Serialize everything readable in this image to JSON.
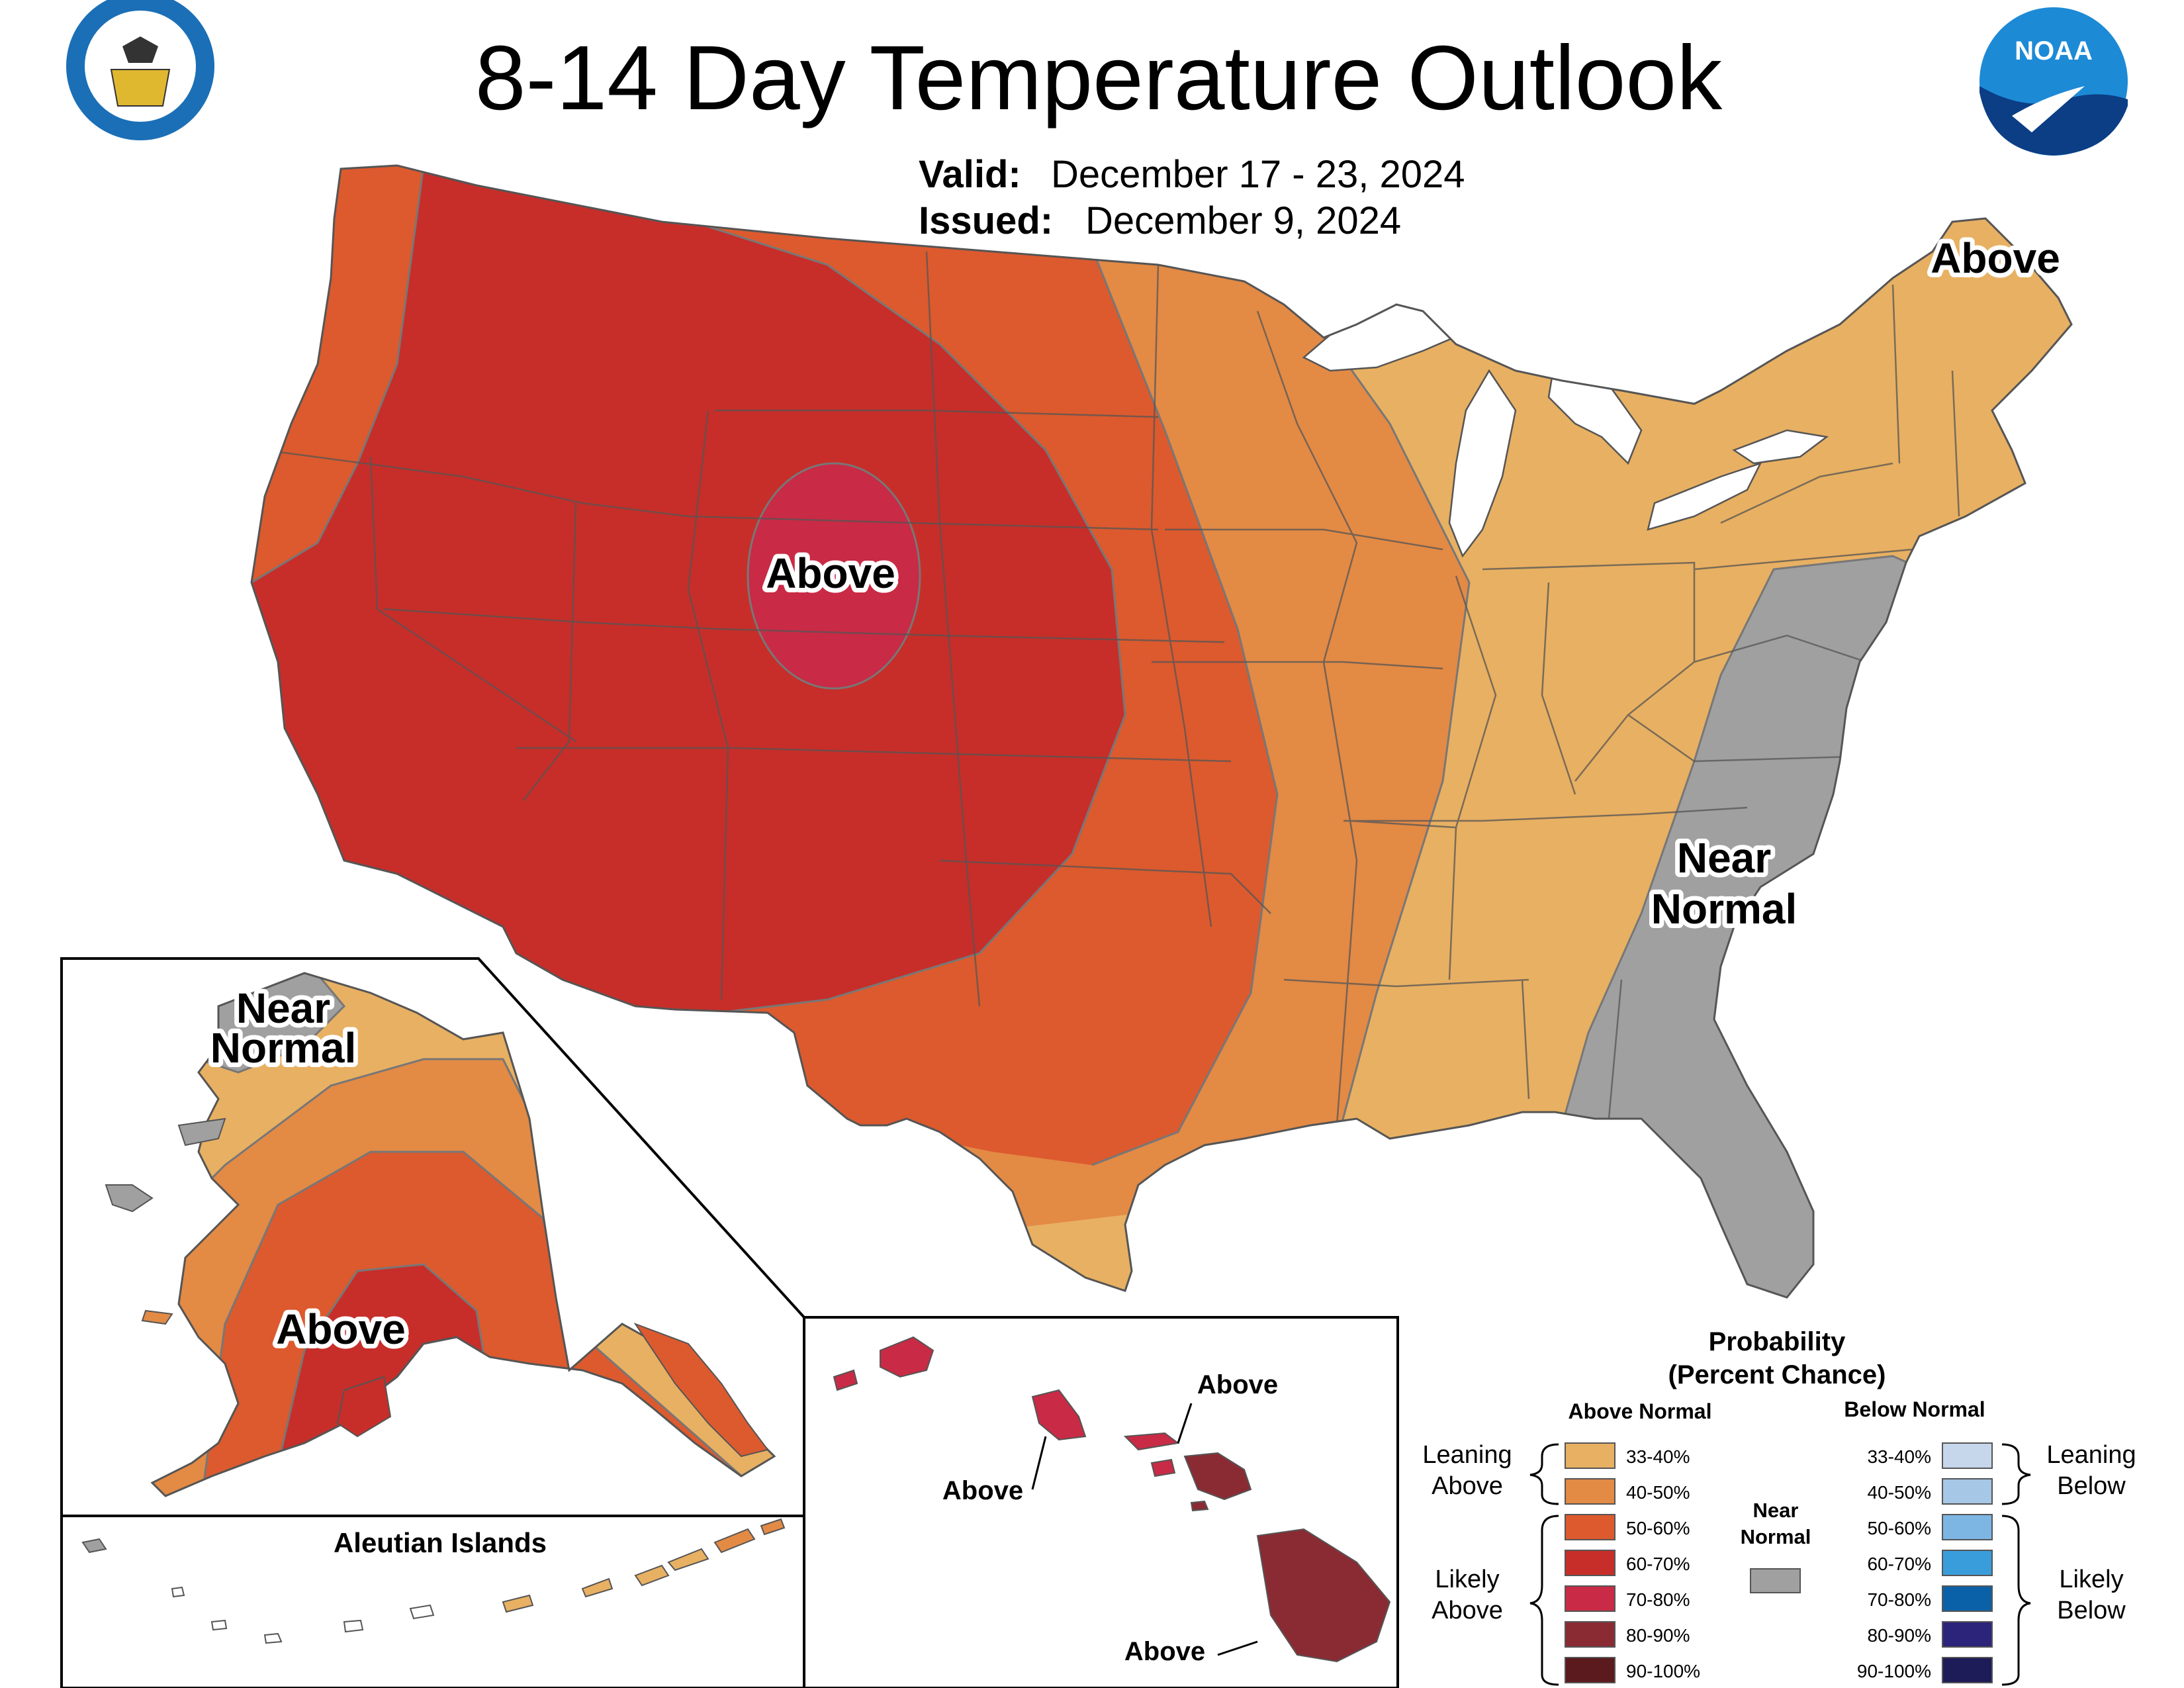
{
  "title": "8-14 Day Temperature Outlook",
  "valid": {
    "label": "Valid:",
    "value": "December 17 - 23, 2024"
  },
  "issued": {
    "label": "Issued:",
    "value": "December 9, 2024"
  },
  "logos": {
    "commerce": "commerce-seal-icon",
    "noaa_text": "NOAA"
  },
  "map_labels": {
    "conus_above_center": "Above",
    "conus_above_northeast": "Above",
    "conus_near_normal_1": "Near",
    "conus_near_normal_2": "Normal",
    "alaska_near_normal_1": "Near",
    "alaska_near_normal_2": "Normal",
    "alaska_above": "Above",
    "aleutian_islands": "Aleutian Islands",
    "hawaii_above_1": "Above",
    "hawaii_above_2": "Above",
    "hawaii_above_3": "Above"
  },
  "colors": {
    "above_33_40": "#E8B062",
    "above_40_50": "#E38A45",
    "above_50_60": "#DC5A2E",
    "above_60_70": "#C72E29",
    "above_70_80": "#C92A45",
    "above_80_90": "#8A2B34",
    "above_90_100": "#5B1A1E",
    "near_normal": "#A0A0A0",
    "below_33_40": "#C6D7EC",
    "below_40_50": "#A7C7E6",
    "below_50_60": "#7DB6E3",
    "below_60_70": "#3A9DDB",
    "below_70_80": "#0B61A8",
    "below_80_90": "#2C237A",
    "below_90_100": "#1D1B58",
    "border": "#555555",
    "lakes": "#ffffff"
  },
  "legend": {
    "title_1": "Probability",
    "title_2": "(Percent Chance)",
    "above_header": "Above Normal",
    "below_header": "Below Normal",
    "near_normal_1": "Near",
    "near_normal_2": "Normal",
    "leaning_above_1": "Leaning",
    "leaning_above_2": "Above",
    "likely_above_1": "Likely",
    "likely_above_2": "Above",
    "leaning_below_1": "Leaning",
    "leaning_below_2": "Below",
    "likely_below_1": "Likely",
    "likely_below_2": "Below",
    "above_ranges": [
      "33-40%",
      "40-50%",
      "50-60%",
      "60-70%",
      "70-80%",
      "80-90%",
      "90-100%"
    ],
    "below_ranges": [
      "33-40%",
      "40-50%",
      "50-60%",
      "60-70%",
      "70-80%",
      "80-90%",
      "90-100%"
    ]
  }
}
